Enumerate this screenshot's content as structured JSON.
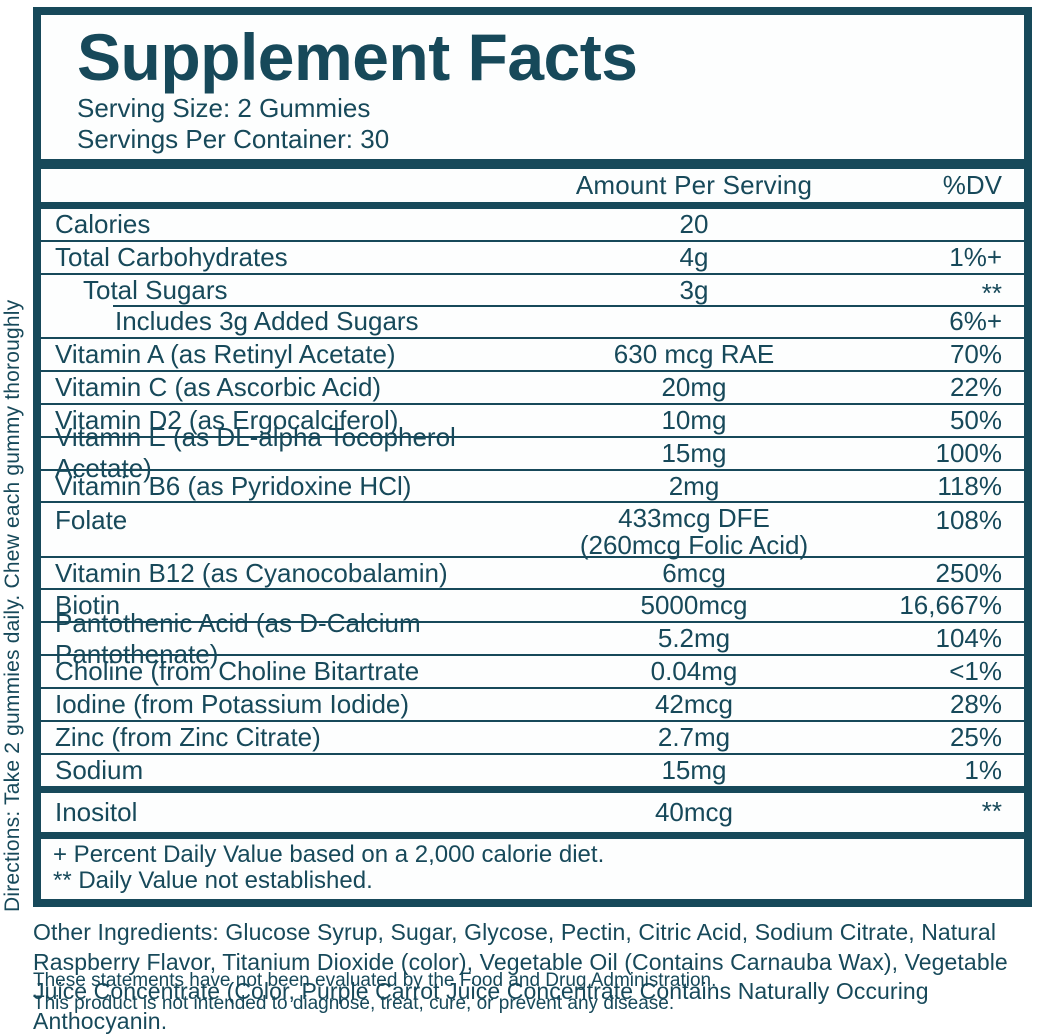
{
  "colors": {
    "teal": "#17495A",
    "panel_bg": "#fdfefe"
  },
  "directions": "Directions: Take 2 gummies daily. Chew each gummy thoroughly",
  "label": {
    "title": "Supplement Facts",
    "serving_size": "Serving Size: 2 Gummies",
    "servings_per_container": "Servings Per Container: 30",
    "columns": {
      "amount": "Amount Per Serving",
      "dv": "%DV"
    },
    "rows": [
      {
        "name": "Calories",
        "amount": "20",
        "dv": "",
        "indent": 0
      },
      {
        "name": "Total Carbohydrates",
        "amount": "4g",
        "dv": "1%+",
        "indent": 0
      },
      {
        "name": "Total Sugars",
        "amount": "3g",
        "dv": "**",
        "indent": 1
      },
      {
        "name": "Includes 3g Added Sugars",
        "amount": "",
        "dv": "6%+",
        "indent": 2,
        "partial_separator": true
      },
      {
        "name": "Vitamin A (as Retinyl Acetate)",
        "amount": "630 mcg RAE",
        "dv": "70%",
        "indent": 0
      },
      {
        "name": "Vitamin C (as Ascorbic Acid)",
        "amount": "20mg",
        "dv": "22%",
        "indent": 0
      },
      {
        "name": "Vitamin D2 (as Ergocalciferol)",
        "amount": "10mg",
        "dv": "50%",
        "indent": 0
      },
      {
        "name": "Vitamin E (as DL-alpha Tocopherol Acetate)",
        "amount": "15mg",
        "dv": "100%",
        "indent": 0
      },
      {
        "name": "Vitamin B6 (as Pyridoxine HCl)",
        "amount": "2mg",
        "dv": "118%",
        "indent": 0
      },
      {
        "name": "Folate",
        "amount": "433mcg DFE",
        "amount2": "(260mcg Folic Acid)",
        "dv": "108%",
        "indent": 0
      },
      {
        "name": "Vitamin B12 (as Cyanocobalamin)",
        "amount": "6mcg",
        "dv": "250%",
        "indent": 0
      },
      {
        "name": "Biotin",
        "amount": "5000mcg",
        "dv": "16,667%",
        "indent": 0
      },
      {
        "name": "Pantothenic Acid (as D-Calcium Pantothenate)",
        "amount": "5.2mg",
        "dv": "104%",
        "indent": 0
      },
      {
        "name": "Choline (from Choline Bitartrate",
        "amount": "0.04mg",
        "dv": "<1%",
        "indent": 0
      },
      {
        "name": "Iodine (from Potassium Iodide)",
        "amount": "42mcg",
        "dv": "28%",
        "indent": 0
      },
      {
        "name": "Zinc (from Zinc Citrate)",
        "amount": "2.7mg",
        "dv": "25%",
        "indent": 0
      },
      {
        "name": "Sodium",
        "amount": "15mg",
        "dv": "1%",
        "indent": 0
      }
    ],
    "separate_rows": [
      {
        "name": "Inositol",
        "amount": "40mcg",
        "dv": "**",
        "indent": 0
      }
    ],
    "footnotes": [
      "+ Percent Daily Value based on a 2,000 calorie diet.",
      "** Daily Value not established."
    ]
  },
  "other_ingredients": "Other Ingredients: Glucose Syrup, Sugar, Glycose, Pectin, Citric Acid, Sodium Citrate, Natural Raspberry Flavor, Titanium Dioxide (color), Vegetable Oil (Contains Carnauba Wax), Vegetable Juice Concentrate (Color, Purple Carrot Juice Concentrate Contains Naturally Occuring Anthocyanin.",
  "disclaimers": [
    "These statements have not been evaluated by the Food and Drug Administration.",
    "This product is not intended to diagnose, treat, cure, or prevent any disease."
  ]
}
